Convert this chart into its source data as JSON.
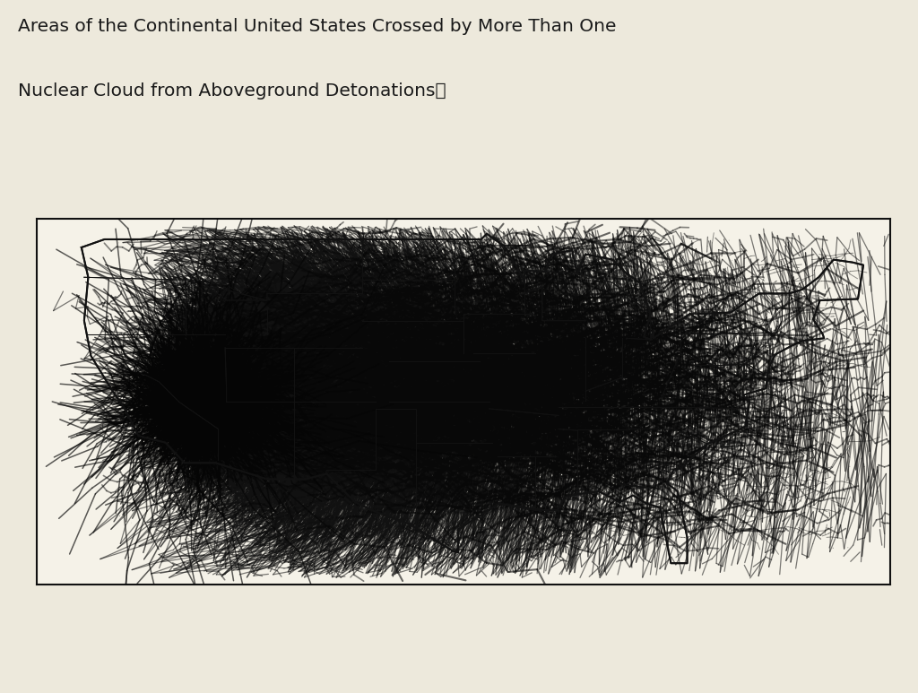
{
  "title_line1": "Areas of the Continental United States Crossed by More Than One",
  "title_line2": "Nuclear Cloud from Aboveground Detonations，",
  "background_color": "#ede9dc",
  "map_background": "#f5f2e8",
  "line_color": "#111111",
  "title_fontsize": 14.5,
  "fig_width": 10.24,
  "fig_height": 7.73,
  "nts_lon": -116.0,
  "nts_lat": 37.2
}
